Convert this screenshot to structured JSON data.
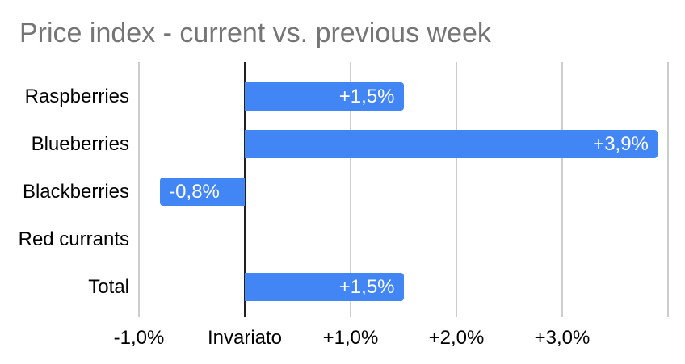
{
  "title": "Price index - current vs. previous week",
  "chart_data": {
    "type": "bar",
    "orientation": "horizontal",
    "title": "Price index - current vs. previous week",
    "categories": [
      "Raspberries",
      "Blueberries",
      "Blackberries",
      "Red currants",
      "Total"
    ],
    "values": [
      1.5,
      3.9,
      -0.8,
      0,
      1.5
    ],
    "bar_labels": [
      "+1,5%",
      "+3,9%",
      "-0,8%",
      "",
      "+1,5%"
    ],
    "x_ticks": [
      {
        "value": -1,
        "label": "-1,0%"
      },
      {
        "value": 0,
        "label": "Invariato"
      },
      {
        "value": 1,
        "label": "+1,0%"
      },
      {
        "value": 2,
        "label": "+2,0%"
      },
      {
        "value": 3,
        "label": "+3,0%"
      },
      {
        "value": 4,
        "label": ""
      }
    ],
    "xlim": [
      -1.26,
      4.16
    ],
    "xlabel": "",
    "ylabel": "",
    "grid": true,
    "legend": "none",
    "colors": {
      "bar": "#4285F4",
      "grid": "#cccccc",
      "zero_line": "#212121",
      "title": "#757575",
      "axis_text": "#000000",
      "bar_label_text": "#ffffff"
    }
  }
}
